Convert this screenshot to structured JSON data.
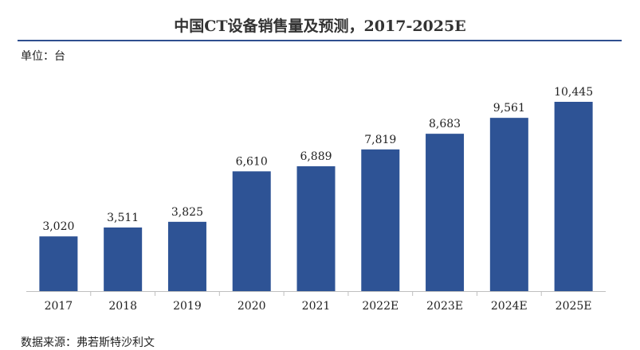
{
  "chart_data": {
    "type": "bar",
    "title": "中国CT设备销售量及预测，2017-2025E",
    "unit_label": "单位：台",
    "source": "数据来源：弗若斯特沙利文",
    "categories": [
      "2017",
      "2018",
      "2019",
      "2020",
      "2021",
      "2022E",
      "2023E",
      "2024E",
      "2025E"
    ],
    "values": [
      3020,
      3511,
      3825,
      6610,
      6889,
      7819,
      8683,
      9561,
      10445
    ],
    "value_labels": [
      "3,020",
      "3,511",
      "3,825",
      "6,610",
      "6,889",
      "7,819",
      "8,683",
      "9,561",
      "10,445"
    ],
    "bar_color": "#2e5395",
    "ylim": [
      0,
      10445
    ],
    "grid": false,
    "legend": "none",
    "xlabel": "",
    "ylabel": ""
  }
}
